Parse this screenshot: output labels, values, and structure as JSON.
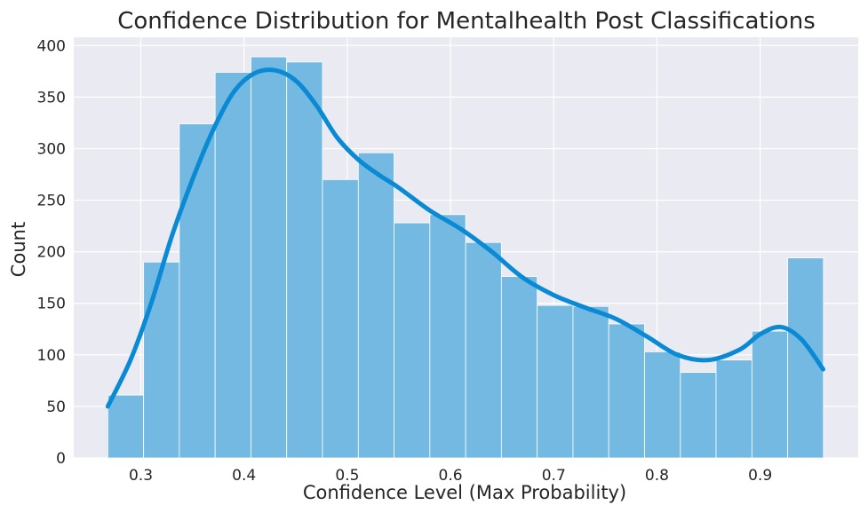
{
  "chart_data": {
    "type": "bar",
    "title": "Confidence Distribution for Mentalhealth Post Classifications",
    "xlabel": "Confidence Level (Max Probability)",
    "ylabel": "Count",
    "xlim": [
      0.235,
      0.995
    ],
    "ylim": [
      0,
      408
    ],
    "xticks": [
      "0.3",
      "0.4",
      "0.5",
      "0.6",
      "0.7",
      "0.8",
      "0.9"
    ],
    "yticks": [
      "0",
      "50",
      "100",
      "150",
      "200",
      "250",
      "300",
      "350",
      "400"
    ],
    "grid": true,
    "background": "#eaeaf2",
    "bar_color": "#74b9e1",
    "curve_color": "#0a8ad4",
    "bins": {
      "edges": [
        0.268,
        0.3027,
        0.3373,
        0.372,
        0.4067,
        0.4413,
        0.476,
        0.5107,
        0.5453,
        0.58,
        0.6147,
        0.6493,
        0.684,
        0.7187,
        0.7533,
        0.788,
        0.8227,
        0.8573,
        0.892,
        0.9267,
        0.9613
      ],
      "counts": [
        61,
        190,
        324,
        374,
        389,
        384,
        270,
        296,
        228,
        236,
        209,
        176,
        148,
        147,
        130,
        103,
        83,
        95,
        123,
        194
      ]
    },
    "series": [
      {
        "type": "kde",
        "x": [
          0.268,
          0.29,
          0.31,
          0.33,
          0.35,
          0.37,
          0.39,
          0.41,
          0.43,
          0.45,
          0.47,
          0.49,
          0.51,
          0.53,
          0.55,
          0.58,
          0.61,
          0.64,
          0.67,
          0.7,
          0.73,
          0.76,
          0.79,
          0.82,
          0.85,
          0.88,
          0.9,
          0.92,
          0.94,
          0.961
        ],
        "y": [
          50,
          95,
          150,
          215,
          270,
          318,
          355,
          373,
          376,
          366,
          342,
          311,
          290,
          275,
          262,
          240,
          222,
          200,
          175,
          158,
          146,
          135,
          118,
          100,
          95,
          105,
          120,
          127,
          115,
          86
        ]
      }
    ]
  }
}
